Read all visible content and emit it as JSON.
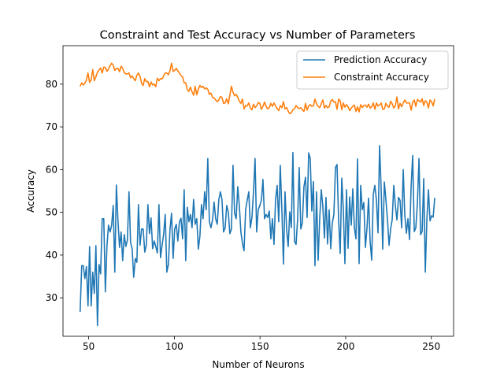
{
  "chart_data": {
    "type": "line",
    "title": "Constraint and Test Accuracy vs Number of Parameters",
    "xlabel": "Number of Neurons",
    "ylabel": "Accuracy",
    "xlim": [
      35,
      263
    ],
    "ylim": [
      21,
      89
    ],
    "xticks": [
      50,
      100,
      150,
      200,
      250
    ],
    "yticks": [
      30,
      40,
      50,
      60,
      70,
      80
    ],
    "grid": false,
    "legend_position": "upper right",
    "x_start": 45,
    "x_end": 252,
    "series": [
      {
        "name": "Prediction Accuracy",
        "color": "#1f77b4",
        "values": [
          26.7,
          37.5,
          37.5,
          34.5,
          37.3,
          28.1,
          42.0,
          28.1,
          36.0,
          31.0,
          42.2,
          23.5,
          37.8,
          35.6,
          48.5,
          48.5,
          31.4,
          42.0,
          47.0,
          45.4,
          47.0,
          51.6,
          36.0,
          56.4,
          48.0,
          41.8,
          45.4,
          38.7,
          44.8,
          42.0,
          43.5,
          54.8,
          43.0,
          41.4,
          34.8,
          39.2,
          38.3,
          51.8,
          42.3,
          46.1,
          46.1,
          40.7,
          42.3,
          51.8,
          45.0,
          48.7,
          41.5,
          43.3,
          42.0,
          40.5,
          51.8,
          39.4,
          42.3,
          44.9,
          49.5,
          36.0,
          37.8,
          45.9,
          49.8,
          39.2,
          46.1,
          47.2,
          43.3,
          47.8,
          48.6,
          43.8,
          55.3,
          38.7,
          51.2,
          47.8,
          49.5,
          46.4,
          53.0,
          47.2,
          48.5,
          41.4,
          44.5,
          51.8,
          48.5,
          54.8,
          50.6,
          62.6,
          47.8,
          46.4,
          48.3,
          52.4,
          48.5,
          47.2,
          53.0,
          54.8,
          53.0,
          45.4,
          46.4,
          51.6,
          50.1,
          45.0,
          46.1,
          61.0,
          49.8,
          48.5,
          56.0,
          51.6,
          45.4,
          42.7,
          41.0,
          50.6,
          52.8,
          54.8,
          46.4,
          48.8,
          54.8,
          62.6,
          45.4,
          50.6,
          51.6,
          52.8,
          57.7,
          48.5,
          49.5,
          48.8,
          50.3,
          43.8,
          48.5,
          42.5,
          53.0,
          56.3,
          47.8,
          61.0,
          50.6,
          37.9,
          54.8,
          46.1,
          42.0,
          50.1,
          46.4,
          64.0,
          43.2,
          42.5,
          48.5,
          60.5,
          46.1,
          47.5,
          56.0,
          58.2,
          48.8,
          63.9,
          62.6,
          50.3,
          57.2,
          37.5,
          54.8,
          38.8,
          48.5,
          55.3,
          51.3,
          44.0,
          53.5,
          42.6,
          50.6,
          41.5,
          47.5,
          49.5,
          60.5,
          61.2,
          48.2,
          40.4,
          58.0,
          50.6,
          38.0,
          55.3,
          41.6,
          53.6,
          47.0,
          55.5,
          46.4,
          43.8,
          62.5,
          38.0,
          56.3,
          50.6,
          52.3,
          41.8,
          46.3,
          53.3,
          43.2,
          38.8,
          54.2,
          56.3,
          52.8,
          45.2,
          65.6,
          55.5,
          41.4,
          57.1,
          53.0,
          48.3,
          42.3,
          46.1,
          48.3,
          56.3,
          51.6,
          48.2,
          53.5,
          52.8,
          46.4,
          60.0,
          49.3,
          45.1,
          48.5,
          43.6,
          56.0,
          63.3,
          45.5,
          46.4,
          52.2,
          62.6,
          44.8,
          45.5,
          57.9,
          36.0,
          48.3,
          55.3,
          48.0,
          49.2,
          48.9,
          53.4
        ]
      },
      {
        "name": "Constraint Accuracy",
        "color": "#ff7f0e",
        "values": [
          79.5,
          80.3,
          79.8,
          80.2,
          81.0,
          82.6,
          80.4,
          81.0,
          83.4,
          80.8,
          81.7,
          82.8,
          83.3,
          83.8,
          82.6,
          84.0,
          83.9,
          83.0,
          83.5,
          84.3,
          84.9,
          84.4,
          83.2,
          83.7,
          83.7,
          82.9,
          84.2,
          83.7,
          82.7,
          82.4,
          82.4,
          82.6,
          81.5,
          81.9,
          81.3,
          80.8,
          82.1,
          82.6,
          81.8,
          80.2,
          79.7,
          81.3,
          80.6,
          80.6,
          79.4,
          80.5,
          79.8,
          80.0,
          79.4,
          81.4,
          80.8,
          81.3,
          81.2,
          81.9,
          82.6,
          82.6,
          82.2,
          83.1,
          84.9,
          83.0,
          83.2,
          83.7,
          83.1,
          82.6,
          82.0,
          81.7,
          80.3,
          80.3,
          78.7,
          78.3,
          79.3,
          78.2,
          77.4,
          79.5,
          77.5,
          78.8,
          79.7,
          79.2,
          79.5,
          78.9,
          79.1,
          78.8,
          77.6,
          77.9,
          76.9,
          76.8,
          76.3,
          75.9,
          76.3,
          77.1,
          76.9,
          75.5,
          75.6,
          76.6,
          75.4,
          77.4,
          79.5,
          78.1,
          77.3,
          77.6,
          76.9,
          76.0,
          75.5,
          76.5,
          74.2,
          75.0,
          74.9,
          75.6,
          74.4,
          74.0,
          75.3,
          74.5,
          74.9,
          75.7,
          75.5,
          74.1,
          74.8,
          75.8,
          74.8,
          74.2,
          74.5,
          75.5,
          74.8,
          75.6,
          74.9,
          74.3,
          73.8,
          75.0,
          74.5,
          75.9,
          74.2,
          74.5,
          73.7,
          73.1,
          73.3,
          74.0,
          74.2,
          75.0,
          74.5,
          74.3,
          74.5,
          74.0,
          73.6,
          75.5,
          73.9,
          74.9,
          75.2,
          74.8,
          74.9,
          76.5,
          75.4,
          74.8,
          74.5,
          75.4,
          76.3,
          74.4,
          75.0,
          74.5,
          74.7,
          76.0,
          76.4,
          75.8,
          75.9,
          74.1,
          76.5,
          76.1,
          74.0,
          75.6,
          74.6,
          75.2,
          74.7,
          73.8,
          74.4,
          74.8,
          75.1,
          73.6,
          74.7,
          73.5,
          75.2,
          74.5,
          75.0,
          75.1,
          74.6,
          75.3,
          74.4,
          74.7,
          75.6,
          74.1,
          75.6,
          74.9,
          75.1,
          75.6,
          74.1,
          74.2,
          75.5,
          74.8,
          74.6,
          76.0,
          75.4,
          74.4,
          75.0,
          77.0,
          74.2,
          75.5,
          74.7,
          75.6,
          76.3,
          75.6,
          75.6,
          75.6,
          73.9,
          75.8,
          76.3,
          74.8,
          76.4,
          76.1,
          75.8,
          76.6,
          75.0,
          76.1,
          75.8,
          74.4,
          76.3,
          75.9,
          74.9,
          76.5
        ]
      }
    ]
  }
}
